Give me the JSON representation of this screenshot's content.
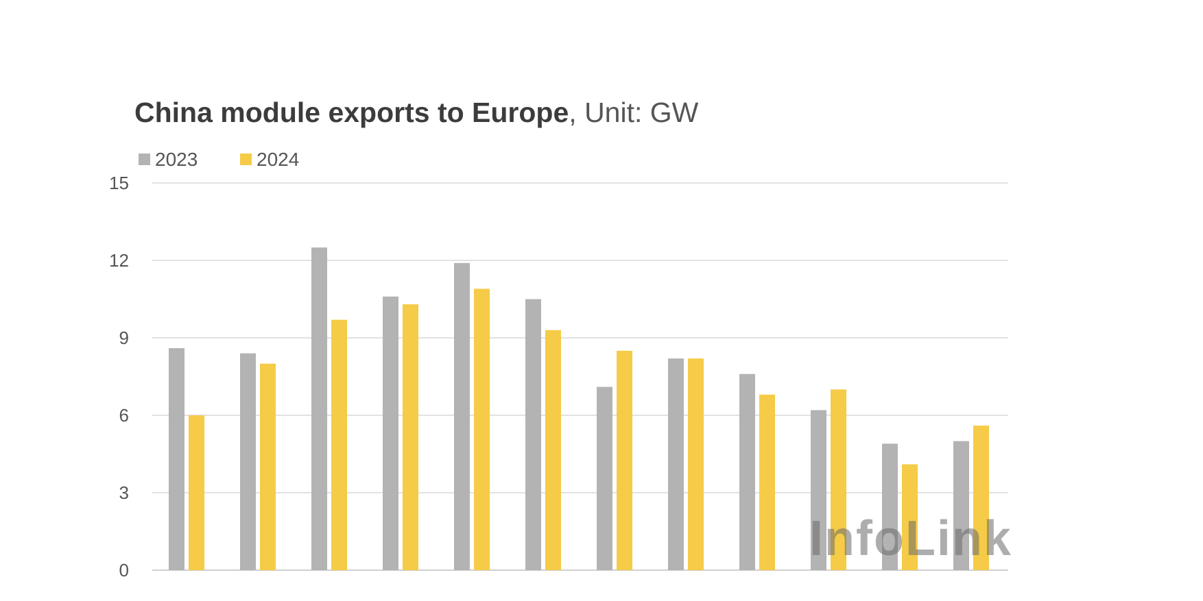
{
  "chart_data": {
    "type": "bar",
    "title": "China module exports to Europe",
    "subtitle": ", Unit: GW",
    "categories": [
      "",
      "",
      "",
      "",
      "",
      "",
      "",
      "",
      "",
      "",
      "",
      ""
    ],
    "series": [
      {
        "name": "2023",
        "color": "#b3b3b3",
        "values": [
          8.6,
          8.4,
          12.5,
          10.6,
          11.9,
          10.5,
          7.1,
          8.2,
          7.6,
          6.2,
          4.9,
          5.0
        ]
      },
      {
        "name": "2024",
        "color": "#f5cb47",
        "values": [
          6.0,
          8.0,
          9.7,
          10.3,
          10.9,
          9.3,
          8.5,
          8.2,
          6.8,
          7.0,
          4.1,
          5.6
        ]
      }
    ],
    "ylim": [
      0,
      15
    ],
    "yticks": [
      0,
      3,
      6,
      9,
      12,
      15
    ],
    "grid": true,
    "legend_position": "top-left"
  },
  "watermark": "InfoLink",
  "colors": {
    "grid": "#d9d9d9",
    "axis": "#d0d0d0"
  }
}
